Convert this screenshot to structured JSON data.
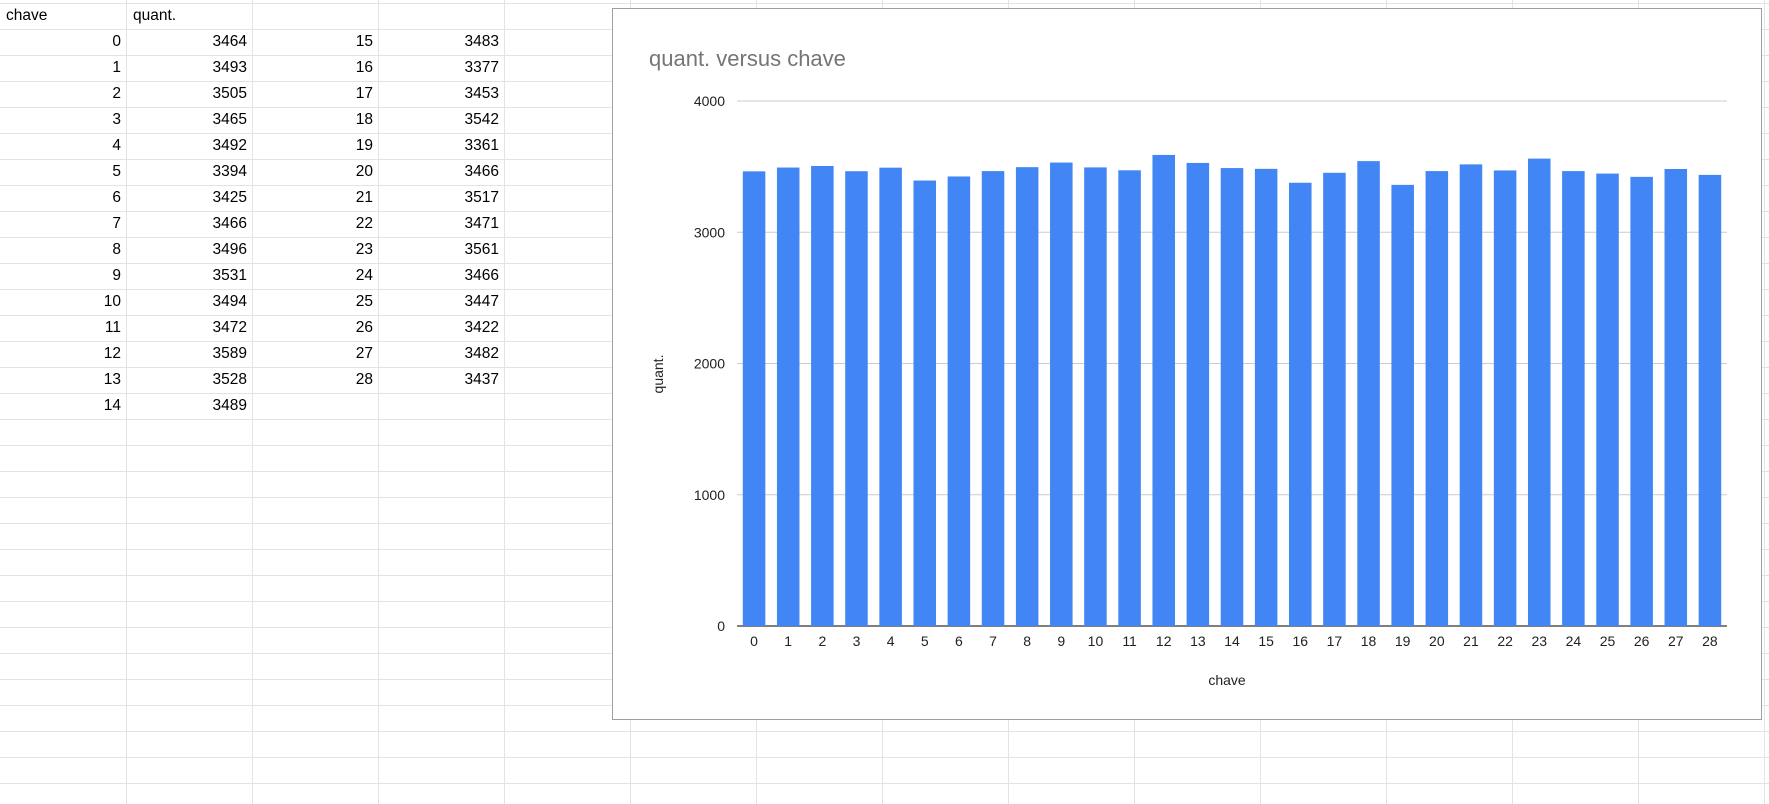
{
  "table": {
    "headers": [
      "chave",
      "quant."
    ],
    "left_block": [
      [
        "0",
        "3464"
      ],
      [
        "1",
        "3493"
      ],
      [
        "2",
        "3505"
      ],
      [
        "3",
        "3465"
      ],
      [
        "4",
        "3492"
      ],
      [
        "5",
        "3394"
      ],
      [
        "6",
        "3425"
      ],
      [
        "7",
        "3466"
      ],
      [
        "8",
        "3496"
      ],
      [
        "9",
        "3531"
      ],
      [
        "10",
        "3494"
      ],
      [
        "11",
        "3472"
      ],
      [
        "12",
        "3589"
      ],
      [
        "13",
        "3528"
      ],
      [
        "14",
        "3489"
      ]
    ],
    "right_block": [
      [
        "15",
        "3483"
      ],
      [
        "16",
        "3377"
      ],
      [
        "17",
        "3453"
      ],
      [
        "18",
        "3542"
      ],
      [
        "19",
        "3361"
      ],
      [
        "20",
        "3466"
      ],
      [
        "21",
        "3517"
      ],
      [
        "22",
        "3471"
      ],
      [
        "23",
        "3561"
      ],
      [
        "24",
        "3466"
      ],
      [
        "25",
        "3447"
      ],
      [
        "26",
        "3422"
      ],
      [
        "27",
        "3482"
      ],
      [
        "28",
        "3437"
      ]
    ]
  },
  "chart_data": {
    "type": "bar",
    "title": "quant. versus chave",
    "xlabel": "chave",
    "ylabel": "quant.",
    "ylim": [
      0,
      4000
    ],
    "yticks": [
      0,
      1000,
      2000,
      3000,
      4000
    ],
    "grid": true,
    "bar_color": "#4285f4",
    "categories": [
      "0",
      "1",
      "2",
      "3",
      "4",
      "5",
      "6",
      "7",
      "8",
      "9",
      "10",
      "11",
      "12",
      "13",
      "14",
      "15",
      "16",
      "17",
      "18",
      "19",
      "20",
      "21",
      "22",
      "23",
      "24",
      "25",
      "26",
      "27",
      "28"
    ],
    "values": [
      3464,
      3493,
      3505,
      3465,
      3492,
      3394,
      3425,
      3466,
      3496,
      3531,
      3494,
      3472,
      3589,
      3528,
      3489,
      3483,
      3377,
      3453,
      3542,
      3361,
      3466,
      3517,
      3471,
      3561,
      3466,
      3447,
      3422,
      3482,
      3437
    ]
  }
}
